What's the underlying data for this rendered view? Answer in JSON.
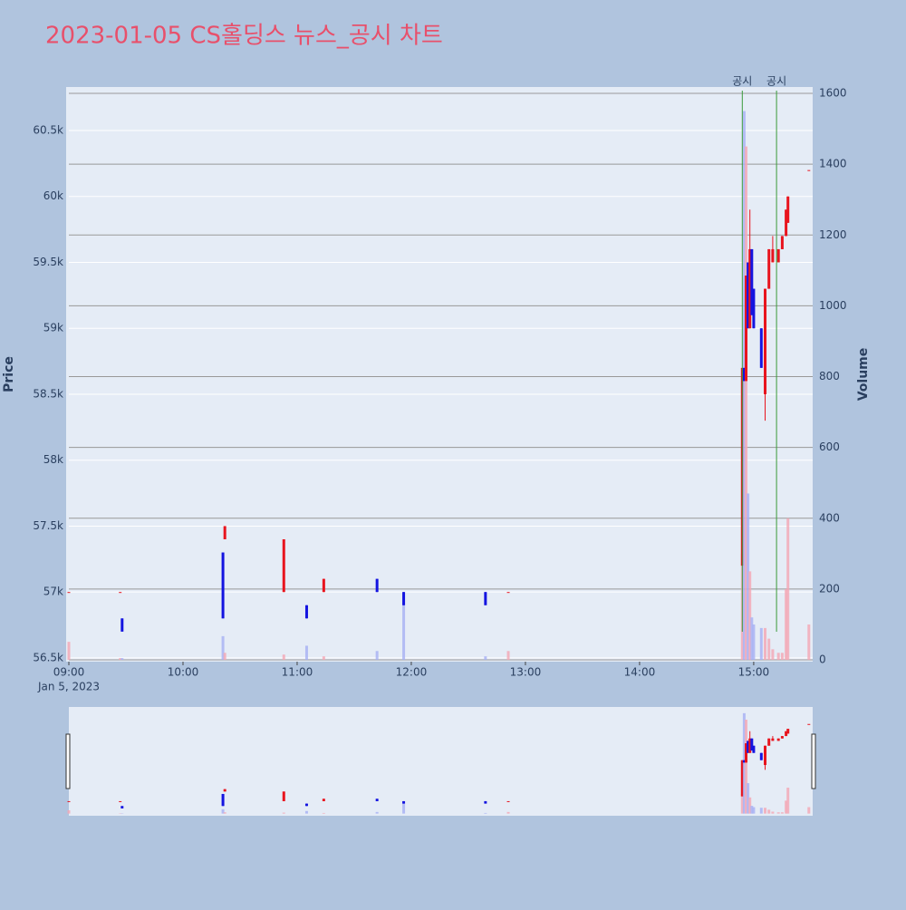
{
  "chart_data": {
    "type": "candlestick",
    "title": "2023-01-05 CS홀딩스 뉴스_공시 차트",
    "y_label": "Price",
    "y2_label": "Volume",
    "x_date_label": "Jan 5, 2023",
    "x": [
      "09:00",
      "09:27",
      "09:28",
      "10:21",
      "10:22",
      "10:53",
      "11:05",
      "11:14",
      "11:42",
      "11:56",
      "12:39",
      "12:51",
      "14:54",
      "14:55",
      "14:56",
      "14:57",
      "14:58",
      "14:59",
      "15:00",
      "15:04",
      "15:06",
      "15:08",
      "15:10",
      "15:13",
      "15:15",
      "15:17",
      "15:18",
      "15:29"
    ],
    "open": [
      57000,
      57000,
      56800,
      57300,
      57400,
      57000,
      56900,
      57000,
      57100,
      57000,
      57000,
      57000,
      57200,
      58700,
      58600,
      59500,
      59000,
      59600,
      59300,
      59000,
      58500,
      59300,
      59500,
      59500,
      59600,
      59700,
      59800,
      60200
    ],
    "high": [
      57000,
      57000,
      56800,
      57300,
      57500,
      57400,
      56900,
      57100,
      57100,
      57000,
      57000,
      57000,
      58700,
      58700,
      59400,
      59500,
      59900,
      59600,
      59300,
      59000,
      59300,
      59600,
      59700,
      59600,
      59700,
      59900,
      60000,
      60200
    ],
    "low": [
      57000,
      57000,
      56700,
      56800,
      57400,
      57000,
      56800,
      57000,
      57000,
      56900,
      56900,
      57000,
      57200,
      58600,
      58600,
      59000,
      59000,
      59100,
      59000,
      58700,
      58300,
      59300,
      59500,
      59500,
      59600,
      59700,
      59800,
      60200
    ],
    "close": [
      57000,
      57000,
      56700,
      56800,
      57500,
      57400,
      56800,
      57100,
      57000,
      56900,
      56900,
      57000,
      58700,
      58600,
      59400,
      59000,
      59600,
      59100,
      59000,
      58700,
      59300,
      59600,
      59600,
      59600,
      59700,
      59900,
      60000,
      60200
    ],
    "volume": [
      51,
      5,
      5,
      67,
      20,
      15,
      40,
      10,
      25,
      160,
      10,
      25,
      300,
      1550,
      1450,
      470,
      250,
      120,
      100,
      90,
      90,
      60,
      30,
      20,
      20,
      200,
      400,
      100
    ],
    "up_color": "#e8141e",
    "down_color": "#1414e0",
    "up_volume_color": "#f4a6b4",
    "down_volume_color": "#a6b0f4",
    "xlim": [
      "09:00",
      "15:31"
    ],
    "xticks": [
      {
        "value": "09:00",
        "label": "09:00"
      },
      {
        "value": "10:00",
        "label": "10:00"
      },
      {
        "value": "11:00",
        "label": "11:00"
      },
      {
        "value": "12:00",
        "label": "12:00"
      },
      {
        "value": "13:00",
        "label": "13:00"
      },
      {
        "value": "14:00",
        "label": "14:00"
      },
      {
        "value": "15:00",
        "label": "15:00"
      }
    ],
    "ylim": [
      56472,
      60830
    ],
    "yticks": [
      {
        "value": 56500,
        "label": "56.5k"
      },
      {
        "value": 57000,
        "label": "57k"
      },
      {
        "value": 57500,
        "label": "57.5k"
      },
      {
        "value": 58000,
        "label": "58k"
      },
      {
        "value": 58500,
        "label": "58.5k"
      },
      {
        "value": 59000,
        "label": "59k"
      },
      {
        "value": 59500,
        "label": "59.5k"
      },
      {
        "value": 60000,
        "label": "60k"
      },
      {
        "value": 60500,
        "label": "60.5k"
      }
    ],
    "y2lim": [
      -5,
      1618
    ],
    "y2ticks": [
      0,
      200,
      400,
      600,
      800,
      1000,
      1200,
      1400,
      1600
    ],
    "annotations": [
      {
        "x": "14:54",
        "text": "공시"
      },
      {
        "x": "15:12",
        "text": "공시"
      }
    ],
    "annotation_color": "#3a9a3a"
  }
}
